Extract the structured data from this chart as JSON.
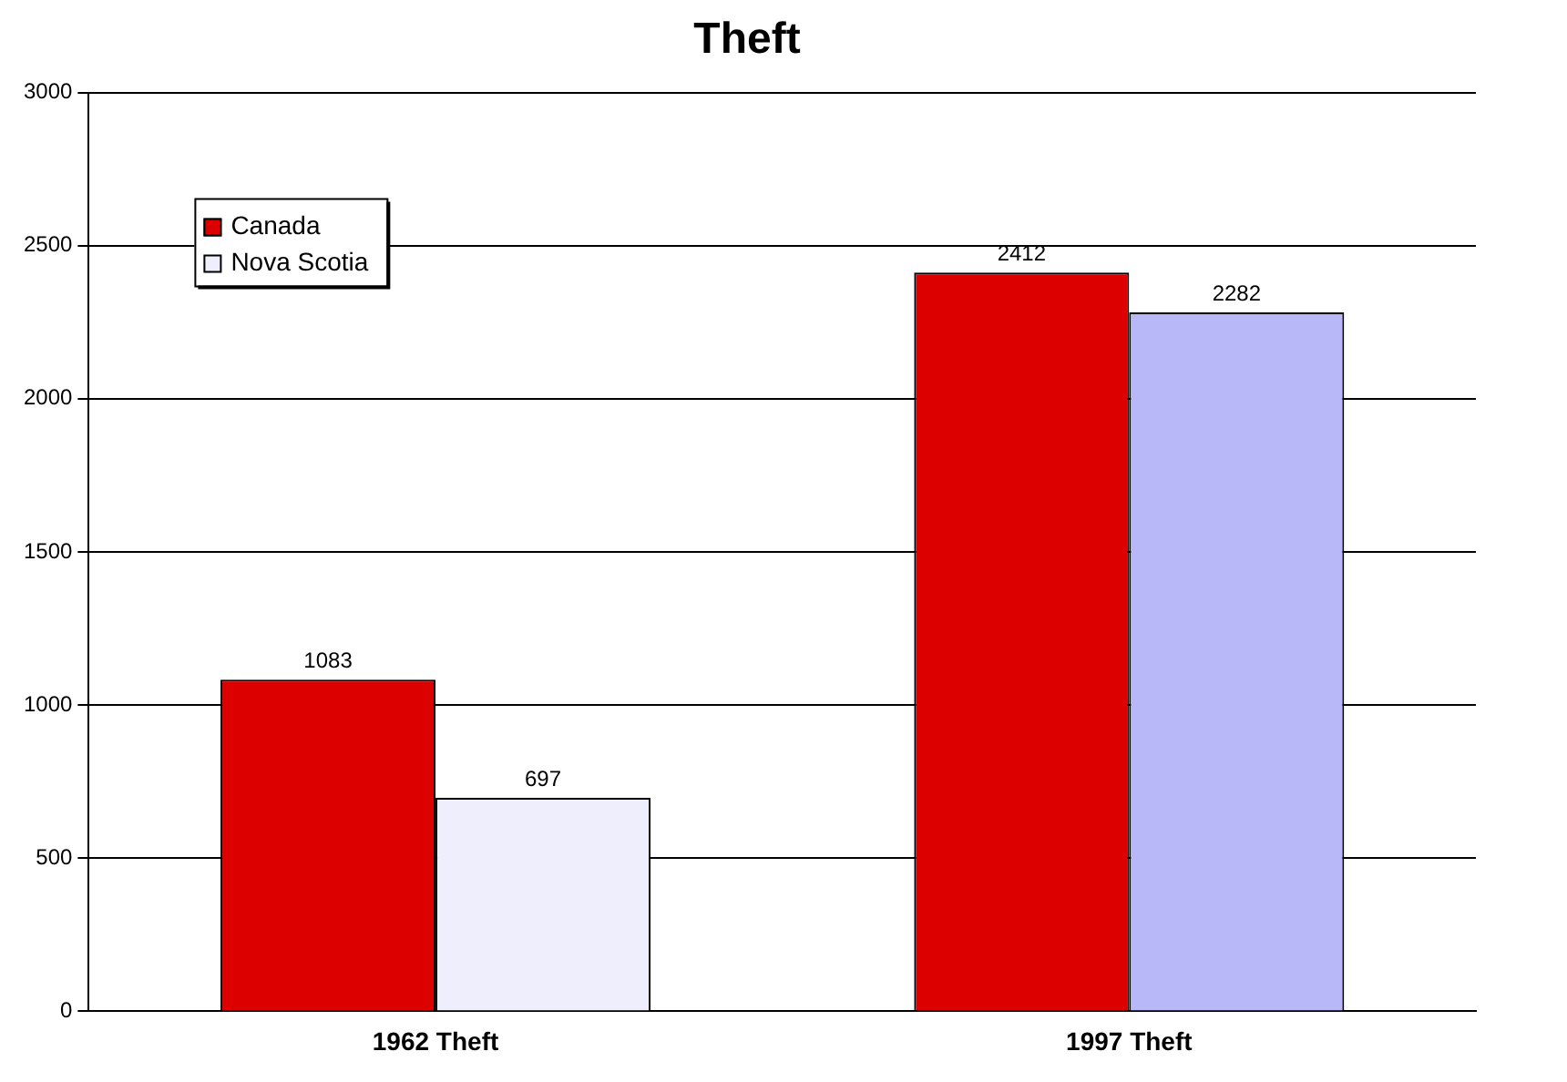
{
  "chart_data": {
    "type": "bar",
    "title": "Theft",
    "categories": [
      "1962 Theft",
      "1997 Theft"
    ],
    "series": [
      {
        "name": "Canada",
        "color": "#dd0000",
        "values": [
          1083,
          2412
        ]
      },
      {
        "name": "Nova Scotia",
        "colors": [
          "#eeeefc",
          "#b8b8f8"
        ],
        "values": [
          697,
          2282
        ]
      }
    ],
    "ylim": [
      0,
      3000
    ],
    "yticks": [
      0,
      500,
      1000,
      1500,
      2000,
      2500,
      3000
    ],
    "grid": "y",
    "legend": "top left",
    "data_labels": true
  }
}
